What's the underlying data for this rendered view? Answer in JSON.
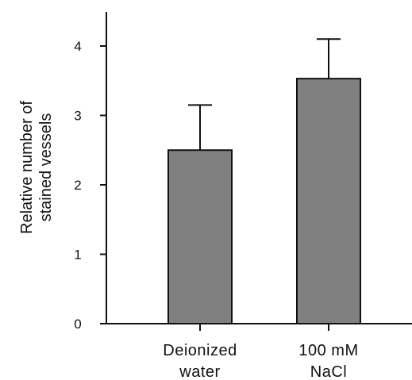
{
  "chart_data": {
    "type": "bar",
    "categories": [
      [
        "Deionized",
        "water"
      ],
      [
        "100 mM",
        "NaCl"
      ]
    ],
    "values": [
      2.5,
      3.53
    ],
    "error_upper": [
      3.15,
      4.1
    ],
    "ylabel": [
      "Relative number of",
      "stained vessels"
    ],
    "ylim": [
      0,
      4.5
    ],
    "yticks": [
      0,
      1,
      2,
      3,
      4
    ],
    "ytick_labels": [
      "0",
      "1",
      "2",
      "3",
      "4"
    ],
    "grid": false,
    "bar_color": "#808080",
    "axis_color": "#111111"
  }
}
